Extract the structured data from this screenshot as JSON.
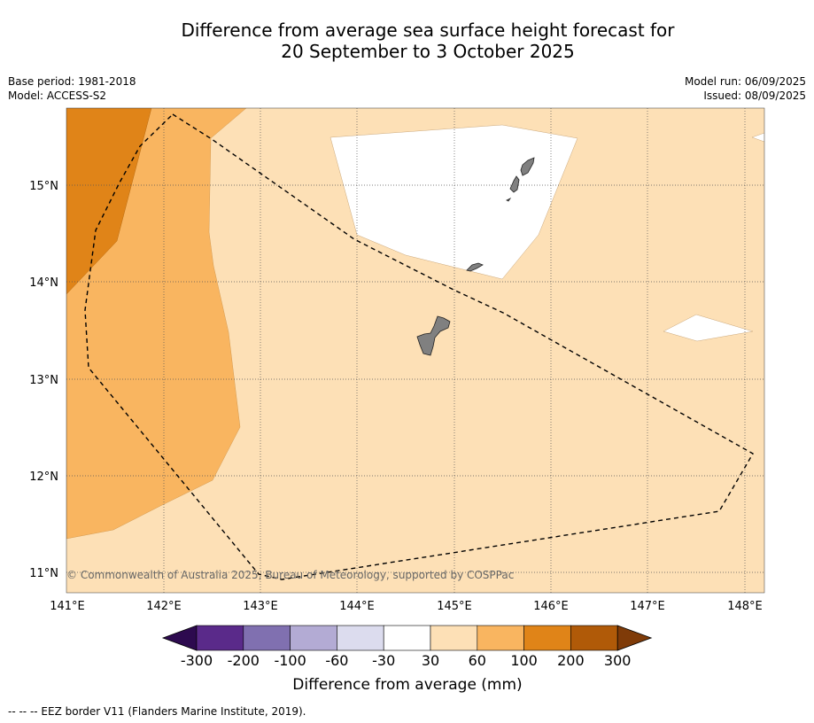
{
  "title_line1": "Difference from average sea surface height forecast for",
  "title_line2": "20 September to 3 October 2025",
  "base_period": "Base period: 1981-2018",
  "model": "Model: ACCESS-S2",
  "model_run": "Model run: 06/09/2025",
  "issued": "Issued: 08/09/2025",
  "copyright": "© Commonwealth of Australia 2025, Bureau of Meteorology, supported by COSPPac",
  "lon_ticks": [
    "141°E",
    "142°E",
    "143°E",
    "144°E",
    "145°E",
    "146°E",
    "147°E",
    "148°E"
  ],
  "lat_ticks": [
    "15°N",
    "14°N",
    "13°N",
    "12°N",
    "11°N"
  ],
  "colorbar": {
    "labels": [
      "-300",
      "-200",
      "-100",
      "-60",
      "-30",
      "30",
      "60",
      "100",
      "200",
      "300"
    ],
    "colors": [
      "#5a2a8a",
      "#8070b0",
      "#b3abd4",
      "#dcdcee",
      "#ffffff",
      "#fde0b6",
      "#f9b560",
      "#e08418",
      "#b05a08"
    ],
    "under_color": "#2d0a4f",
    "over_color": "#7f3b08",
    "title": "Difference from average (mm)"
  },
  "footnote": "--  --  -- EEZ border V11 (Flanders Marine Institute, 2019).",
  "map_colors": {
    "land": "#808080",
    "eez_line": "#000000"
  }
}
